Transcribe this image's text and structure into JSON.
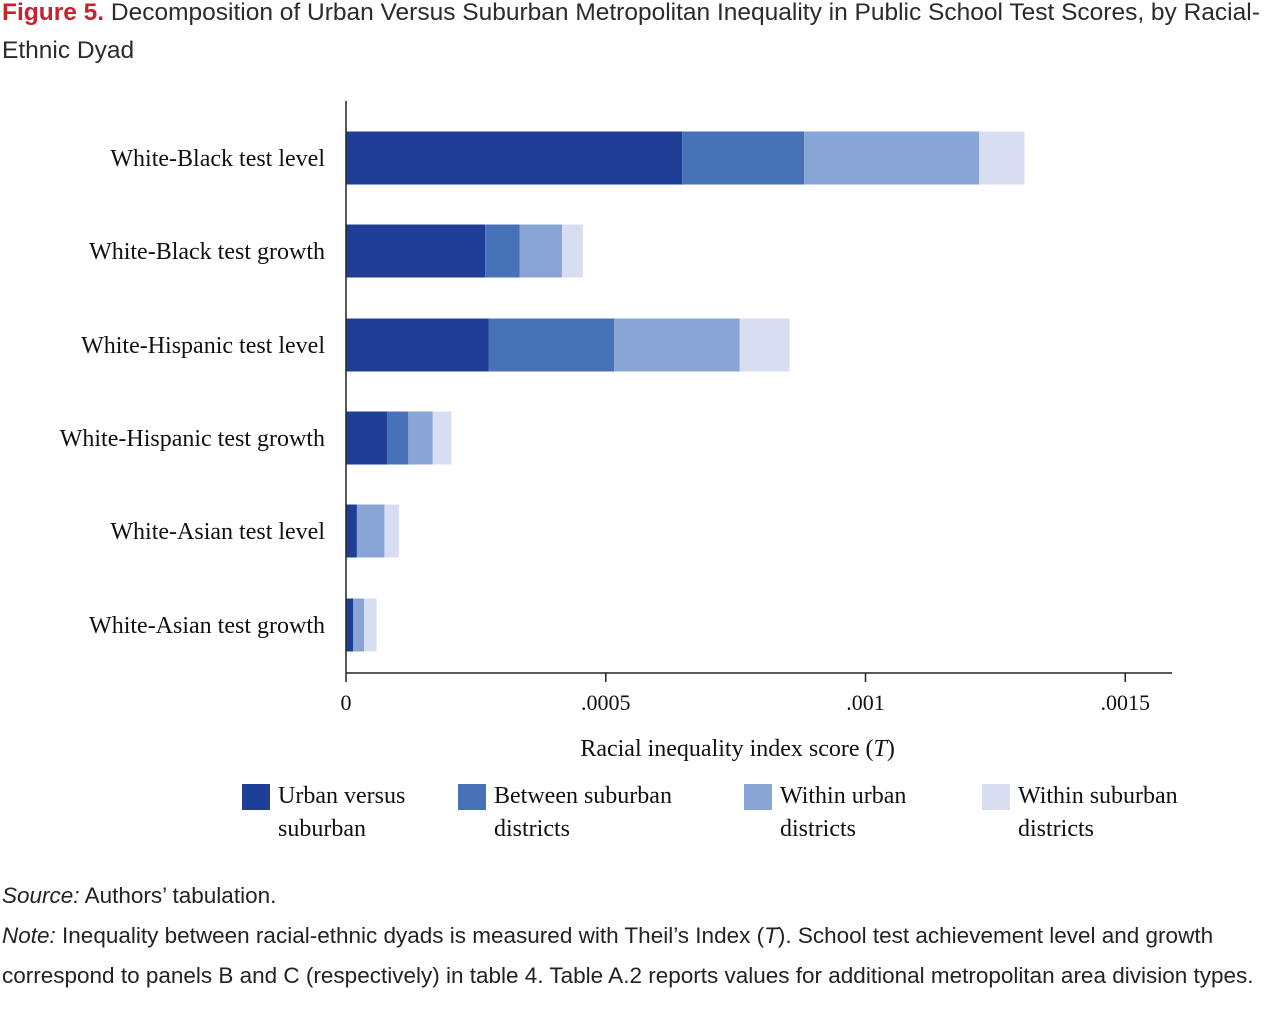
{
  "title": {
    "label": "Figure 5.",
    "text": "Decomposition of Urban Versus Suburban Metropolitan Inequality in Public School Test Scores, by Racial-Ethnic Dyad"
  },
  "colors": {
    "urban_vs_suburban": "#1f3f97",
    "between_suburban": "#4772b8",
    "within_urban": "#89a5d6",
    "within_suburban": "#d8def2",
    "title_accent": "#c4242f"
  },
  "chart_data": {
    "type": "bar",
    "orientation": "horizontal",
    "stacked": true,
    "categories": [
      "White-Black test level",
      "White-Black test growth",
      "White-Hispanic test level",
      "White-Hispanic test growth",
      "White-Asian test level",
      "White-Asian test growth"
    ],
    "series": [
      {
        "name": "Urban versus suburban",
        "values": [
          0.000647,
          0.000268,
          0.000275,
          7.9e-05,
          2.1e-05,
          1.4e-05
        ],
        "color": "#1f3f97"
      },
      {
        "name": "Between suburban districts",
        "values": [
          0.000235,
          6.6e-05,
          0.000241,
          4.1e-05,
          0.0,
          0.0
        ],
        "color": "#4772b8"
      },
      {
        "name": "Within urban districts",
        "values": [
          0.000337,
          8.2e-05,
          0.000242,
          4.7e-05,
          5.3e-05,
          2.1e-05
        ],
        "color": "#89a5d6"
      },
      {
        "name": "Within suburban districts",
        "values": [
          8.7e-05,
          4e-05,
          9.6e-05,
          3.6e-05,
          2.8e-05,
          2.4e-05
        ],
        "color": "#d8def2"
      }
    ],
    "xlabel": "Racial inequality index score",
    "xlabel_symbol": "T",
    "xlim": [
      0,
      0.00159
    ],
    "xticks": [
      0,
      0.0005,
      0.001,
      0.0015
    ],
    "xtick_labels": [
      "0",
      ".0005",
      ".001",
      ".0015"
    ],
    "legend": {
      "placement": "bottom",
      "entries": [
        {
          "line1": "Urban versus",
          "line2": "suburban"
        },
        {
          "line1": "Between suburban",
          "line2": "districts"
        },
        {
          "line1": "Within urban",
          "line2": "districts"
        },
        {
          "line1": "Within suburban",
          "line2": "districts"
        }
      ]
    },
    "grid": false
  },
  "notes": {
    "source_label": "Source:",
    "source_text": "Authors’ tabulation.",
    "note_label": "Note:",
    "note_text_1": "Inequality between racial-ethnic dyads is measured with Theil’s Index (",
    "note_symbol": "T",
    "note_text_2": "). School test achievement level and growth correspond to panels B and C (respectively) in table 4. Table A.2 reports values for additional metropolitan area division types."
  }
}
